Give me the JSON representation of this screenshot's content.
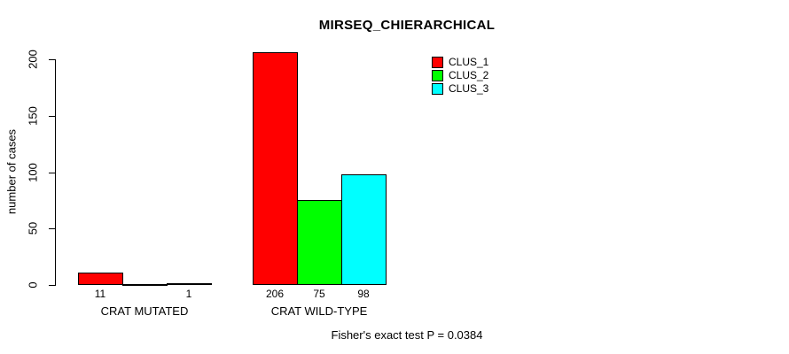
{
  "chart_data": {
    "type": "bar",
    "layout_style": "grouped",
    "title": "MIRSEQ_CHIERARCHICAL",
    "xlabel": "",
    "ylabel": "number of cases",
    "ylim": [
      0,
      200
    ],
    "yticks": [
      0,
      50,
      100,
      150,
      200
    ],
    "grid": false,
    "background_color": "#ffffff",
    "bar_border_color": "#000000",
    "categories": [
      "CRAT MUTATED",
      "CRAT WILD-TYPE"
    ],
    "series": [
      {
        "name": "CLUS_1",
        "color": "#ff0000",
        "values": [
          11,
          206
        ]
      },
      {
        "name": "CLUS_2",
        "color": "#00ff00",
        "values": [
          0,
          75
        ]
      },
      {
        "name": "CLUS_3",
        "color": "#00ffff",
        "values": [
          1,
          98
        ]
      }
    ],
    "bar_value_labels": [
      [
        "11",
        "",
        "1"
      ],
      [
        "206",
        "75",
        "98"
      ]
    ],
    "legend": {
      "position": "top-right",
      "entries": [
        "CLUS_1",
        "CLUS_2",
        "CLUS_3"
      ]
    },
    "annotation": "Fisher's exact test P = 0.0384"
  }
}
